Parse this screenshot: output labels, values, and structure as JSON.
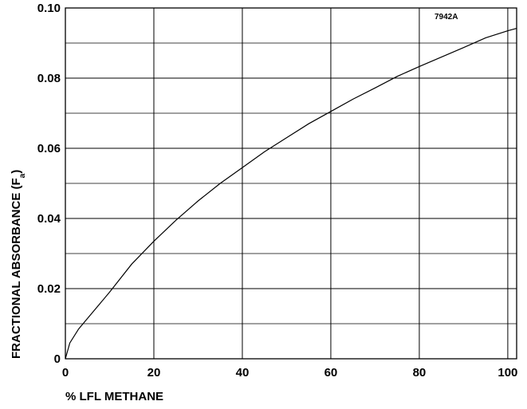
{
  "chart_data": {
    "type": "line",
    "title": "",
    "xlabel": "% LFL METHANE",
    "ylabel": {
      "main": "FRACTIONAL ABSORBANCE (F",
      "subscript": "a",
      "close": ")"
    },
    "annotation": "7942A",
    "xlim": [
      0,
      102
    ],
    "ylim": [
      0,
      0.1
    ],
    "xticks": [
      0,
      20,
      40,
      60,
      80,
      100
    ],
    "xtick_labels": [
      "0",
      "20",
      "40",
      "60",
      "80",
      "100"
    ],
    "yticks": [
      0,
      0.02,
      0.04,
      0.06,
      0.08,
      0.1
    ],
    "ytick_labels": [
      "0",
      "0.02",
      "0.04",
      "0.06",
      "0.08",
      "0.10"
    ],
    "grid": true,
    "legend": "none",
    "series": [
      {
        "x": [
          0,
          1,
          3,
          5,
          10,
          15,
          20,
          25,
          30,
          35,
          40,
          45,
          50,
          55,
          60,
          65,
          70,
          75,
          80,
          85,
          90,
          95,
          100,
          102
        ],
        "y": [
          0,
          0.0045,
          0.0085,
          0.0115,
          0.019,
          0.027,
          0.0335,
          0.0395,
          0.045,
          0.05,
          0.0545,
          0.059,
          0.063,
          0.067,
          0.0705,
          0.074,
          0.0772,
          0.0805,
          0.0833,
          0.086,
          0.0887,
          0.0915,
          0.0935,
          0.0942
        ],
        "color": "#000000"
      }
    ]
  }
}
